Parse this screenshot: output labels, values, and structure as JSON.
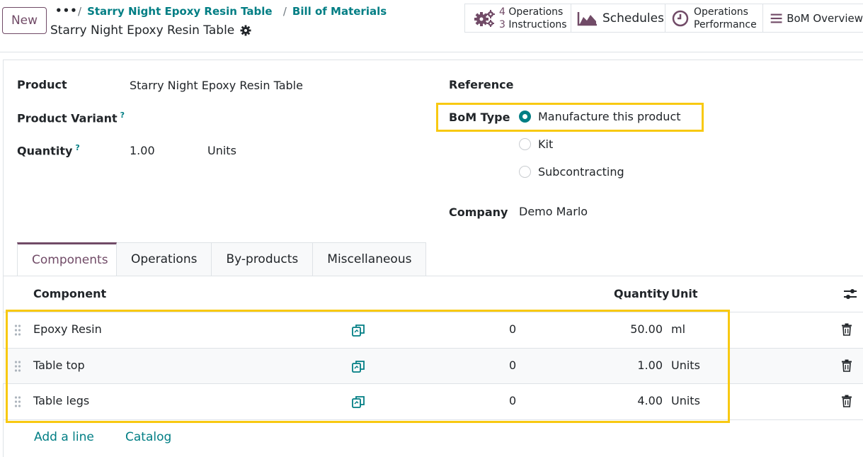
{
  "header": {
    "new_label": "New",
    "more_label": "•••",
    "breadcrumb_product": "Starry Night Epoxy Resin Table",
    "breadcrumb_bom": "Bill of Materials",
    "record_title": "Starry Night Epoxy Resin Table"
  },
  "smart_buttons": {
    "operations_count": "4",
    "operations_label": "Operations",
    "instructions_count": "3",
    "instructions_label": "Instructions",
    "schedules": "Schedules",
    "performance_line1": "Operations",
    "performance_line2": "Performance",
    "bom_overview": "BoM Overview"
  },
  "form": {
    "product_label": "Product",
    "product_value": "Starry Night Epoxy Resin Table",
    "variant_label": "Product Variant",
    "quantity_label": "Quantity",
    "quantity_value": "1.00",
    "quantity_unit": "Units",
    "help_mark": "?",
    "reference_label": "Reference",
    "bom_type_label": "BoM Type",
    "bom_type_options": [
      "Manufacture this product",
      "Kit",
      "Subcontracting"
    ],
    "bom_type_selected": "Manufacture this product",
    "company_label": "Company",
    "company_value": "Demo Marlo"
  },
  "tabs": [
    "Components",
    "Operations",
    "By-products",
    "Miscellaneous"
  ],
  "components_table": {
    "headers": {
      "component": "Component",
      "quantity": "Quantity",
      "unit": "Unit"
    },
    "rows": [
      {
        "name": "Epoxy Resin",
        "availability": "0",
        "quantity": "50.00",
        "unit": "ml"
      },
      {
        "name": "Table top",
        "availability": "0",
        "quantity": "1.00",
        "unit": "Units"
      },
      {
        "name": "Table legs",
        "availability": "0",
        "quantity": "4.00",
        "unit": "Units"
      }
    ],
    "add_line": "Add a line",
    "catalog": "Catalog"
  },
  "colors": {
    "brand": "#714b67",
    "link": "#017e84",
    "highlight": "#f8c912"
  }
}
